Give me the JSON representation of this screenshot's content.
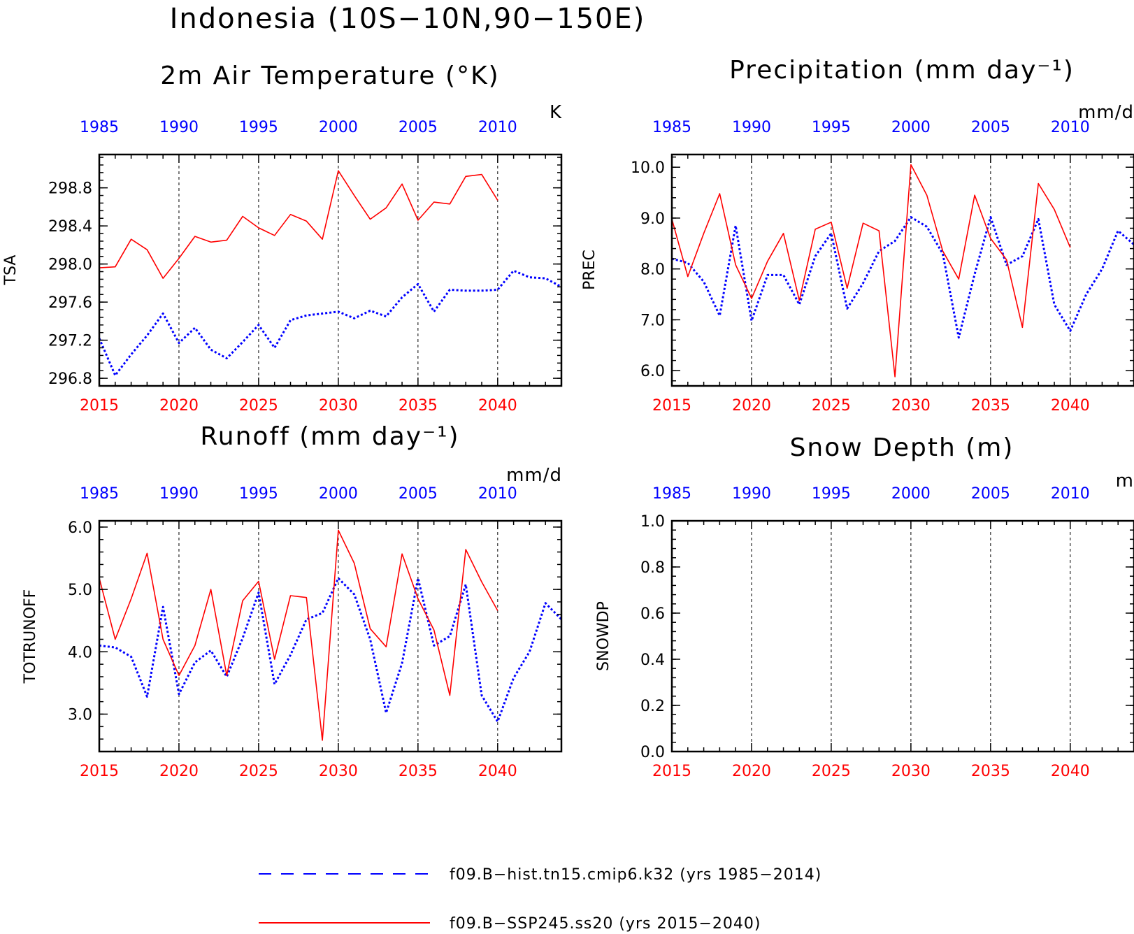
{
  "title": "Indonesia (10S−10N,90−150E)",
  "colors": {
    "hist": "#0000ff",
    "ssp": "#ff0000",
    "axis": "#000000"
  },
  "legend": [
    {
      "series": "hist",
      "label": "f09.B−hist.tn15.cmip6.k32 (yrs 1985−2014)",
      "style": "dashed"
    },
    {
      "series": "ssp",
      "label": "f09.B−SSP245.ss20 (yrs 2015−2040)",
      "style": "solid"
    }
  ],
  "chart_data": [
    {
      "type": "line",
      "title": "2m Air Temperature (°K)",
      "ylabel": "TSA",
      "units": "K",
      "ylim": [
        296.72,
        299.15
      ],
      "yticks": [
        296.8,
        297.2,
        297.6,
        298.0,
        298.4,
        298.8
      ],
      "ytick_labels": [
        "296.8",
        "297.2",
        "297.6",
        "298.0",
        "298.4",
        "298.8"
      ],
      "grid": "vertical dashed every 5 years",
      "x_bottom": {
        "ticks": [
          2015,
          2020,
          2025,
          2030,
          2035,
          2040
        ],
        "range": [
          2015,
          2044
        ]
      },
      "x_top": {
        "ticks": [
          1985,
          1990,
          1995,
          2000,
          2005,
          2010
        ],
        "range": [
          1985,
          2014
        ]
      },
      "series": [
        {
          "name": "f09.B−hist.tn15.cmip6.k32 (yrs 1985−2014)",
          "key": "hist",
          "x_axis": "top",
          "x": [
            1985,
            1986,
            1987,
            1988,
            1989,
            1990,
            1991,
            1992,
            1993,
            1994,
            1995,
            1996,
            1997,
            1998,
            1999,
            2000,
            2001,
            2002,
            2003,
            2004,
            2005,
            2006,
            2007,
            2008,
            2009,
            2010,
            2011,
            2012,
            2013,
            2014
          ],
          "values": [
            297.22,
            296.83,
            297.05,
            297.25,
            297.48,
            297.17,
            297.33,
            297.1,
            297.01,
            297.18,
            297.36,
            297.12,
            297.41,
            297.46,
            297.48,
            297.5,
            297.43,
            297.51,
            297.45,
            297.65,
            297.79,
            297.5,
            297.73,
            297.72,
            297.72,
            297.73,
            297.93,
            297.86,
            297.85,
            297.76
          ]
        },
        {
          "name": "f09.B−SSP245.ss20 (yrs 2015−2040)",
          "key": "ssp",
          "x_axis": "bottom",
          "x": [
            2015,
            2016,
            2017,
            2018,
            2019,
            2020,
            2021,
            2022,
            2023,
            2024,
            2025,
            2026,
            2027,
            2028,
            2029,
            2030,
            2031,
            2032,
            2033,
            2034,
            2035,
            2036,
            2037,
            2038,
            2039,
            2040
          ],
          "values": [
            297.96,
            297.97,
            298.26,
            298.15,
            297.85,
            298.06,
            298.29,
            298.23,
            298.25,
            298.5,
            298.38,
            298.3,
            298.52,
            298.45,
            298.26,
            298.98,
            298.72,
            298.47,
            298.59,
            298.84,
            298.46,
            298.65,
            298.63,
            298.92,
            298.94,
            298.67
          ]
        }
      ]
    },
    {
      "type": "line",
      "title": "Precipitation (mm day⁻¹)",
      "ylabel": "PREC",
      "units": "mm/d",
      "ylim": [
        5.7,
        10.25
      ],
      "yticks": [
        6.0,
        7.0,
        8.0,
        9.0,
        10.0
      ],
      "ytick_labels": [
        "6.0",
        "7.0",
        "8.0",
        "9.0",
        "10.0"
      ],
      "grid": "vertical dashed every 5 years",
      "x_bottom": {
        "ticks": [
          2015,
          2020,
          2025,
          2030,
          2035,
          2040
        ],
        "range": [
          2015,
          2044
        ]
      },
      "x_top": {
        "ticks": [
          1985,
          1990,
          1995,
          2000,
          2005,
          2010
        ],
        "range": [
          1985,
          2014
        ]
      },
      "series": [
        {
          "name": "f09.B−hist.tn15.cmip6.k32 (yrs 1985−2014)",
          "key": "hist",
          "x_axis": "top",
          "x": [
            1985,
            1986,
            1987,
            1988,
            1989,
            1990,
            1991,
            1992,
            1993,
            1994,
            1995,
            1996,
            1997,
            1998,
            1999,
            2000,
            2001,
            2002,
            2003,
            2004,
            2005,
            2006,
            2007,
            2008,
            2009,
            2010,
            2011,
            2012,
            2013,
            2014
          ],
          "values": [
            8.2,
            8.12,
            7.75,
            7.08,
            8.85,
            6.98,
            7.88,
            7.88,
            7.3,
            8.25,
            8.7,
            7.22,
            7.72,
            8.35,
            8.55,
            9.02,
            8.83,
            8.3,
            6.65,
            7.9,
            9.02,
            8.08,
            8.25,
            8.98,
            7.3,
            6.78,
            7.5,
            8.0,
            8.75,
            8.48
          ]
        },
        {
          "name": "f09.B−SSP245.ss20 (yrs 2015−2040)",
          "key": "ssp",
          "x_axis": "bottom",
          "x": [
            2015,
            2016,
            2017,
            2018,
            2019,
            2020,
            2021,
            2022,
            2023,
            2024,
            2025,
            2026,
            2027,
            2028,
            2029,
            2030,
            2031,
            2032,
            2033,
            2034,
            2035,
            2036,
            2037,
            2038,
            2039,
            2040
          ],
          "values": [
            8.98,
            7.85,
            8.7,
            9.48,
            8.08,
            7.42,
            8.15,
            8.7,
            7.38,
            8.78,
            8.92,
            7.62,
            8.9,
            8.75,
            5.88,
            10.05,
            9.45,
            8.35,
            7.8,
            9.45,
            8.6,
            8.18,
            6.85,
            9.68,
            9.17,
            8.42
          ]
        }
      ]
    },
    {
      "type": "line",
      "title": "Runoff (mm day⁻¹)",
      "ylabel": "TOTRUNOFF",
      "units": "mm/d",
      "ylim": [
        2.4,
        6.1
      ],
      "yticks": [
        3.0,
        4.0,
        5.0,
        6.0
      ],
      "ytick_labels": [
        "3.0",
        "4.0",
        "5.0",
        "6.0"
      ],
      "grid": "vertical dashed every 5 years",
      "x_bottom": {
        "ticks": [
          2015,
          2020,
          2025,
          2030,
          2035,
          2040
        ],
        "range": [
          2015,
          2044
        ]
      },
      "x_top": {
        "ticks": [
          1985,
          1990,
          1995,
          2000,
          2005,
          2010
        ],
        "range": [
          1985,
          2014
        ]
      },
      "series": [
        {
          "name": "f09.B−hist.tn15.cmip6.k32 (yrs 1985−2014)",
          "key": "hist",
          "x_axis": "top",
          "x": [
            1985,
            1986,
            1987,
            1988,
            1989,
            1990,
            1991,
            1992,
            1993,
            1994,
            1995,
            1996,
            1997,
            1998,
            1999,
            2000,
            2001,
            2002,
            2003,
            2004,
            2005,
            2006,
            2007,
            2008,
            2009,
            2010,
            2011,
            2012,
            2013,
            2014
          ],
          "values": [
            4.1,
            4.07,
            3.92,
            3.28,
            4.72,
            3.32,
            3.83,
            4.02,
            3.6,
            4.22,
            4.95,
            3.48,
            3.95,
            4.52,
            4.62,
            5.18,
            4.92,
            4.2,
            3.02,
            3.82,
            5.18,
            4.1,
            4.25,
            5.08,
            3.3,
            2.88,
            3.58,
            4.0,
            4.78,
            4.52
          ]
        },
        {
          "name": "f09.B−SSP245.ss20 (yrs 2015−2040)",
          "key": "ssp",
          "x_axis": "bottom",
          "x": [
            2015,
            2016,
            2017,
            2018,
            2019,
            2020,
            2021,
            2022,
            2023,
            2024,
            2025,
            2026,
            2027,
            2028,
            2029,
            2030,
            2031,
            2032,
            2033,
            2034,
            2035,
            2036,
            2037,
            2038,
            2039,
            2040
          ],
          "values": [
            5.18,
            4.2,
            4.85,
            5.58,
            4.2,
            3.62,
            4.1,
            5.0,
            3.62,
            4.82,
            5.13,
            3.88,
            4.9,
            4.87,
            2.58,
            5.95,
            5.42,
            4.37,
            4.08,
            5.57,
            4.85,
            4.35,
            3.3,
            5.64,
            5.12,
            4.66
          ]
        }
      ]
    },
    {
      "type": "line",
      "title": "Snow Depth (m)",
      "ylabel": "SNOWDP",
      "units": "m",
      "ylim": [
        0.0,
        1.0
      ],
      "yticks": [
        0.0,
        0.2,
        0.4,
        0.6,
        0.8,
        1.0
      ],
      "ytick_labels": [
        "0.0",
        "0.2",
        "0.4",
        "0.6",
        "0.8",
        "1.0"
      ],
      "grid": "vertical dashed every 5 years",
      "x_bottom": {
        "ticks": [
          2015,
          2020,
          2025,
          2030,
          2035,
          2040
        ],
        "range": [
          2015,
          2044
        ]
      },
      "x_top": {
        "ticks": [
          1985,
          1990,
          1995,
          2000,
          2005,
          2010
        ],
        "range": [
          1985,
          2014
        ]
      },
      "series": []
    }
  ]
}
